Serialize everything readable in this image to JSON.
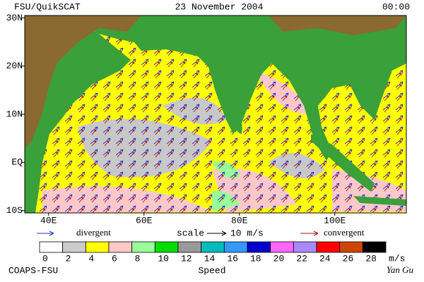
{
  "header": {
    "title": "FSU/QuikSCAT",
    "date": "23 November 2004",
    "time": "00:00"
  },
  "map": {
    "lonlim": [
      35,
      115
    ],
    "latlim": [
      -10.5,
      30.5
    ],
    "lon_ticks": [
      {
        "value": 40,
        "label": "40E"
      },
      {
        "value": 60,
        "label": "60E"
      },
      {
        "value": 80,
        "label": "80E"
      },
      {
        "value": 100,
        "label": "100E"
      }
    ],
    "lat_ticks": [
      {
        "value": 30,
        "label": "30N"
      },
      {
        "value": 20,
        "label": "20N"
      },
      {
        "value": 10,
        "label": "10N"
      },
      {
        "value": 0,
        "label": "EQ"
      },
      {
        "value": -10,
        "label": "10S"
      }
    ]
  },
  "legend": {
    "divergent": "divergent",
    "divergent_color": "#2233cc",
    "scale": "scale",
    "scale_value": "10 m/s",
    "convergent": "convergent",
    "convergent_color": "#aa1111"
  },
  "colorbar": {
    "ticks": [
      0,
      2,
      4,
      6,
      8,
      10,
      12,
      14,
      16,
      18,
      20,
      22,
      24,
      26,
      28
    ],
    "colors": [
      "#ffffff",
      "#cccccc",
      "#ffff00",
      "#ffc8c8",
      "#99ff99",
      "#00dd00",
      "#999999",
      "#00bbbb",
      "#3399ff",
      "#0000cc",
      "#ff66ff",
      "#aa88ff",
      "#ff0000",
      "#cc4400",
      "#000000"
    ],
    "unit": "m/s",
    "title": "Speed"
  },
  "footer": {
    "left": "COAPS-FSU",
    "right": "Yan Gu"
  }
}
